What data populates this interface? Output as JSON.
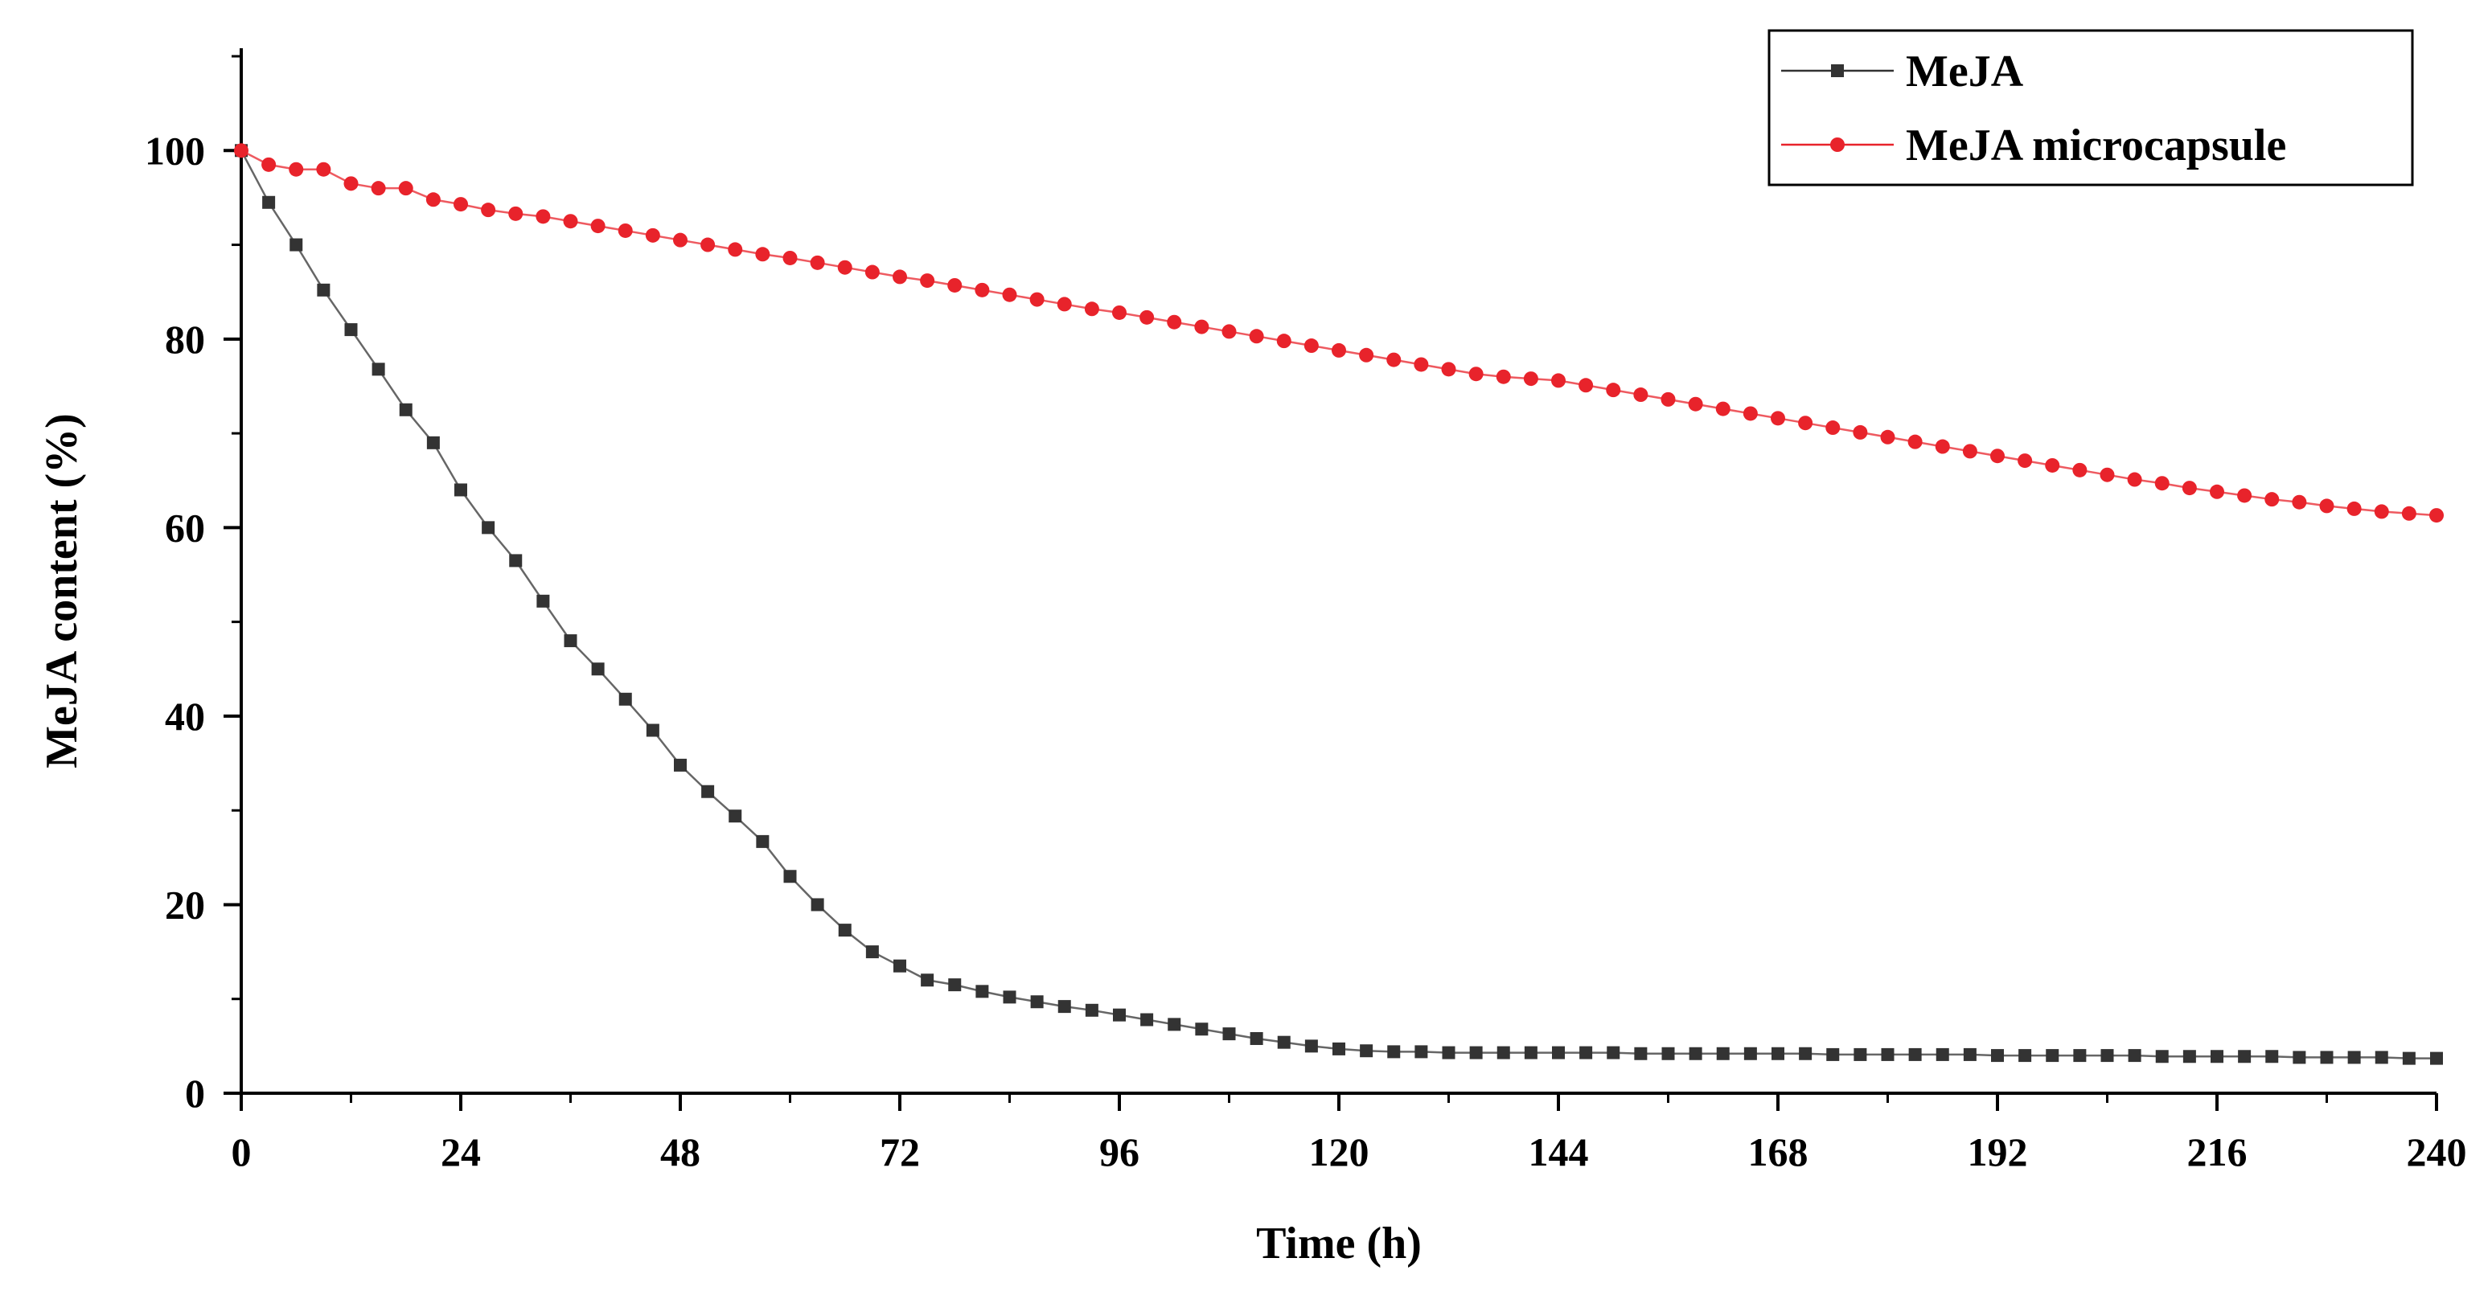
{
  "chart_data": {
    "type": "line",
    "title": "",
    "xlabel": "Time (h)",
    "ylabel": "MeJA content (%)",
    "xlim": [
      0,
      240
    ],
    "ylim": [
      0,
      110
    ],
    "xticks": [
      0,
      24,
      48,
      72,
      96,
      120,
      144,
      168,
      192,
      216,
      240
    ],
    "yticks": [
      0,
      20,
      40,
      60,
      80,
      100
    ],
    "grid": false,
    "legend_position": "top-right",
    "series": [
      {
        "name": "MeJA",
        "color": "#333333",
        "marker": "square",
        "x": [
          0,
          3,
          6,
          9,
          12,
          15,
          18,
          21,
          24,
          27,
          30,
          33,
          36,
          39,
          42,
          45,
          48,
          51,
          54,
          57,
          60,
          63,
          66,
          69,
          72,
          75,
          78,
          81,
          84,
          87,
          90,
          93,
          96,
          99,
          102,
          105,
          108,
          111,
          114,
          117,
          120,
          123,
          126,
          129,
          132,
          135,
          138,
          141,
          144,
          147,
          150,
          153,
          156,
          159,
          162,
          165,
          168,
          171,
          174,
          177,
          180,
          183,
          186,
          189,
          192,
          195,
          198,
          201,
          204,
          207,
          210,
          213,
          216,
          219,
          222,
          225,
          228,
          231,
          234,
          237,
          240
        ],
        "values": [
          100,
          94.5,
          90,
          85.2,
          81,
          76.8,
          72.5,
          69,
          64,
          60,
          56.5,
          52.2,
          48,
          45,
          41.8,
          38.5,
          34.8,
          32,
          29.4,
          26.7,
          23,
          20,
          17.3,
          15,
          13.5,
          12,
          11.5,
          10.8,
          10.2,
          9.7,
          9.2,
          8.8,
          8.3,
          7.8,
          7.3,
          6.8,
          6.3,
          5.8,
          5.4,
          5,
          4.7,
          4.5,
          4.4,
          4.4,
          4.3,
          4.3,
          4.3,
          4.3,
          4.3,
          4.3,
          4.3,
          4.2,
          4.2,
          4.2,
          4.2,
          4.2,
          4.2,
          4.2,
          4.1,
          4.1,
          4.1,
          4.1,
          4.1,
          4.1,
          4.0,
          4.0,
          4.0,
          4.0,
          4.0,
          4.0,
          3.9,
          3.9,
          3.9,
          3.9,
          3.9,
          3.8,
          3.8,
          3.8,
          3.8,
          3.7,
          3.7
        ]
      },
      {
        "name": "MeJA microcapsule",
        "color": "#e8232b",
        "marker": "circle",
        "x": [
          0,
          3,
          6,
          9,
          12,
          15,
          18,
          21,
          24,
          27,
          30,
          33,
          36,
          39,
          42,
          45,
          48,
          51,
          54,
          57,
          60,
          63,
          66,
          69,
          72,
          75,
          78,
          81,
          84,
          87,
          90,
          93,
          96,
          99,
          102,
          105,
          108,
          111,
          114,
          117,
          120,
          123,
          126,
          129,
          132,
          135,
          138,
          141,
          144,
          147,
          150,
          153,
          156,
          159,
          162,
          165,
          168,
          171,
          174,
          177,
          180,
          183,
          186,
          189,
          192,
          195,
          198,
          201,
          204,
          207,
          210,
          213,
          216,
          219,
          222,
          225,
          228,
          231,
          234,
          237,
          240
        ],
        "values": [
          100,
          98.5,
          98,
          98,
          96.5,
          96,
          96,
          94.8,
          94.3,
          93.7,
          93.3,
          93,
          92.5,
          92,
          91.5,
          91,
          90.5,
          90,
          89.5,
          89,
          88.6,
          88.1,
          87.6,
          87.1,
          86.6,
          86.2,
          85.7,
          85.2,
          84.7,
          84.2,
          83.7,
          83.2,
          82.8,
          82.3,
          81.8,
          81.3,
          80.8,
          80.3,
          79.8,
          79.3,
          78.8,
          78.3,
          77.8,
          77.3,
          76.8,
          76.3,
          76,
          75.8,
          75.6,
          75.1,
          74.6,
          74.1,
          73.6,
          73.1,
          72.6,
          72.1,
          71.6,
          71.1,
          70.6,
          70.1,
          69.6,
          69.1,
          68.6,
          68.1,
          67.6,
          67.1,
          66.6,
          66.1,
          65.6,
          65.1,
          64.7,
          64.2,
          63.8,
          63.4,
          63,
          62.7,
          62.3,
          62,
          61.7,
          61.5,
          61.3
        ]
      }
    ]
  }
}
